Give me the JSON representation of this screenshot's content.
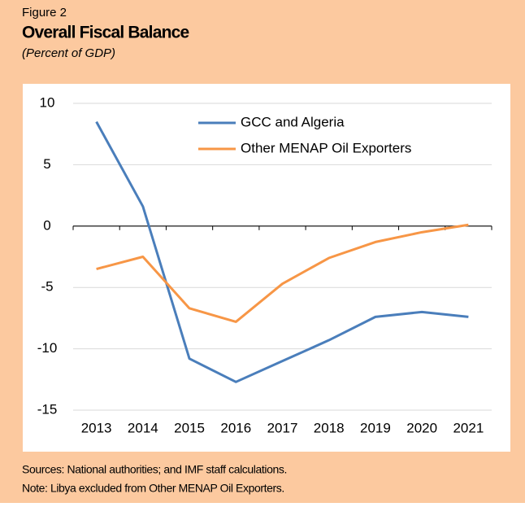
{
  "chart_data": {
    "type": "line",
    "figure_label": "Figure 2",
    "title": "Overall Fiscal Balance",
    "subtitle": "(Percent of GDP)",
    "categories": [
      "2013",
      "2014",
      "2015",
      "2016",
      "2017",
      "2018",
      "2019",
      "2020",
      "2021"
    ],
    "series": [
      {
        "name": "GCC and Algeria",
        "color": "#4a7ebb",
        "values": [
          8.5,
          1.6,
          -10.8,
          -12.7,
          -11.0,
          -9.3,
          -7.4,
          -7.0,
          -7.4
        ]
      },
      {
        "name": "Other MENAP Oil Exporters",
        "color": "#f79646",
        "values": [
          -3.5,
          -2.5,
          -6.7,
          -7.8,
          -4.7,
          -2.6,
          -1.3,
          -0.5,
          0.1
        ]
      }
    ],
    "ylim": [
      -15,
      10
    ],
    "yticks": [
      -15,
      -10,
      -5,
      0,
      5,
      10
    ],
    "grid": true,
    "sources": "Sources: National authorities; and IMF staff calculations.",
    "note": "Note: Libya excluded from Other MENAP Oil Exporters."
  }
}
